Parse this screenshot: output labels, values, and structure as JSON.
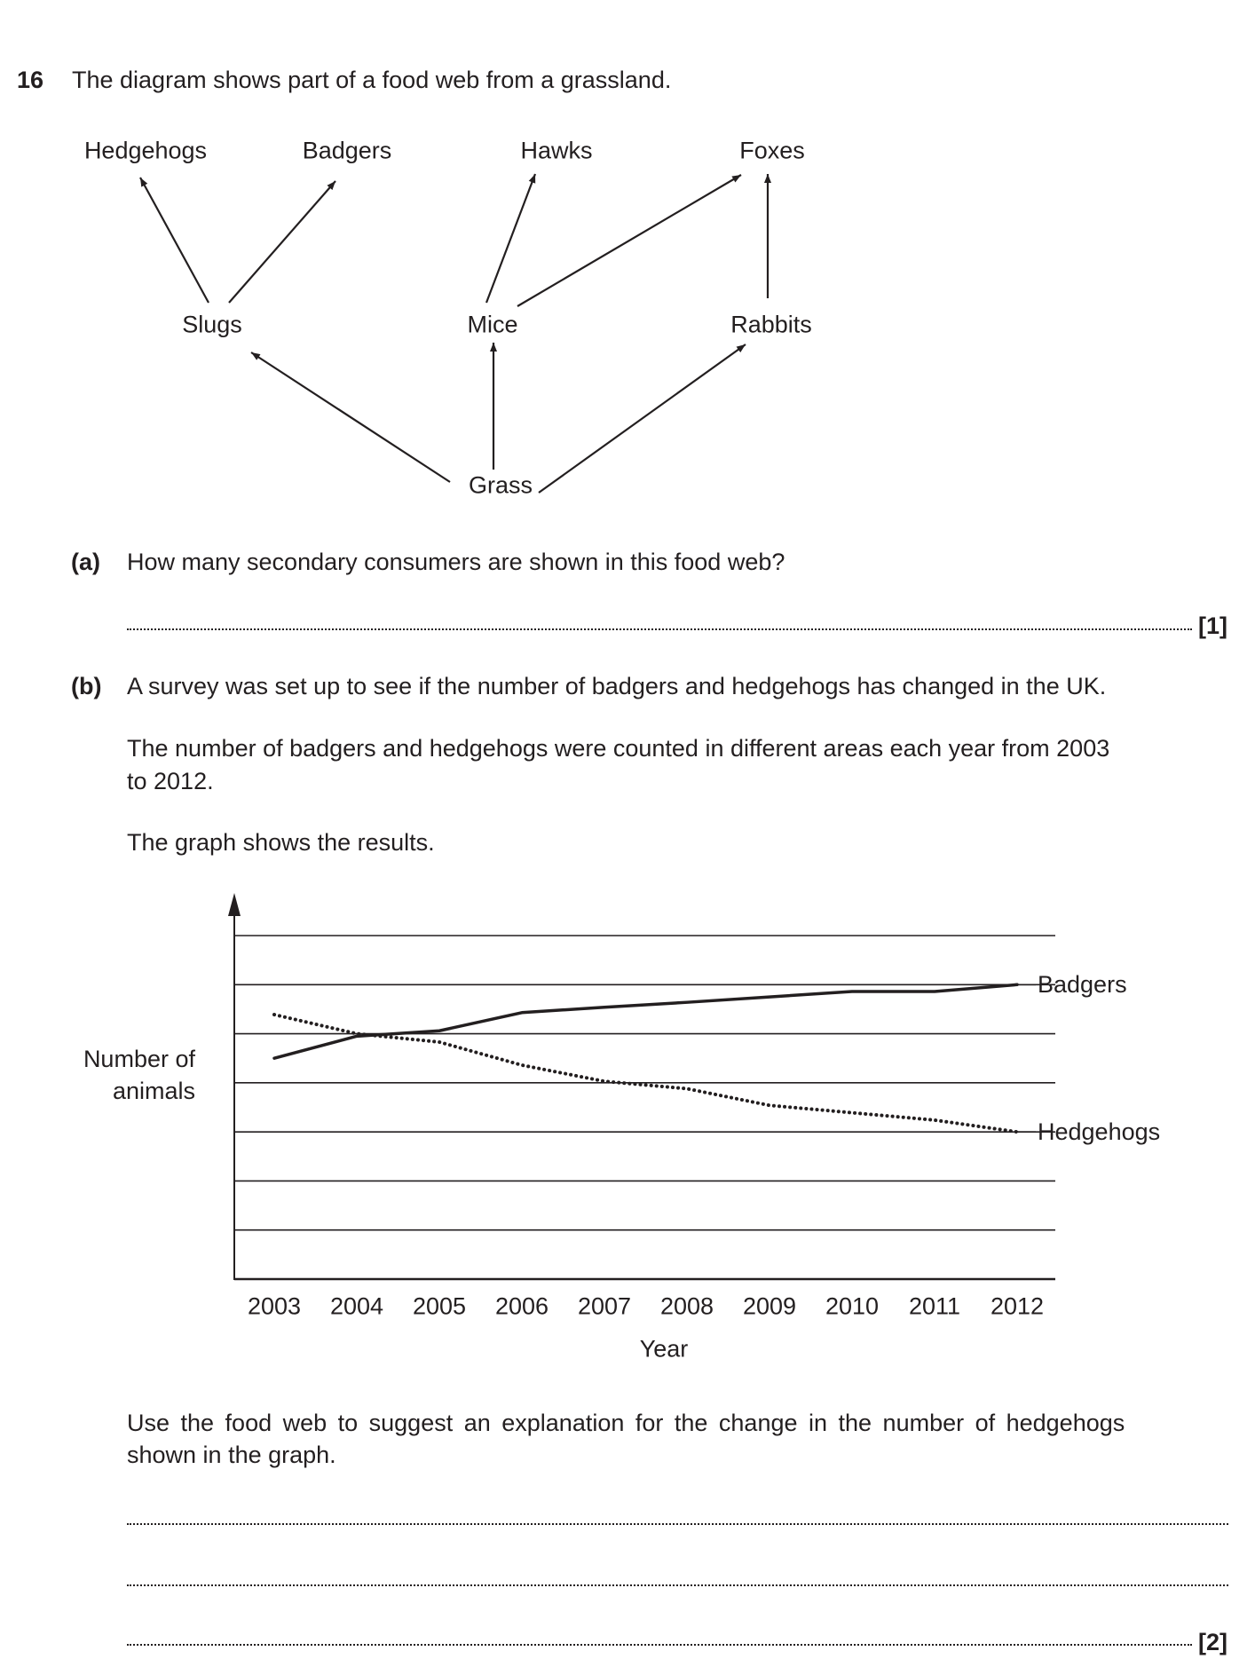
{
  "question": {
    "number": "16",
    "intro": "The diagram shows part of a food web from a grassland.",
    "food_web": {
      "nodes": {
        "hedgehogs": "Hedgehogs",
        "badgers": "Badgers",
        "hawks": "Hawks",
        "foxes": "Foxes",
        "slugs": "Slugs",
        "mice": "Mice",
        "rabbits": "Rabbits",
        "grass": "Grass"
      },
      "arrows": [
        {
          "from": "Slugs",
          "to": "Hedgehogs"
        },
        {
          "from": "Slugs",
          "to": "Badgers"
        },
        {
          "from": "Mice",
          "to": "Hawks"
        },
        {
          "from": "Mice",
          "to": "Foxes"
        },
        {
          "from": "Rabbits",
          "to": "Foxes"
        },
        {
          "from": "Grass",
          "to": "Slugs"
        },
        {
          "from": "Grass",
          "to": "Mice"
        },
        {
          "from": "Grass",
          "to": "Rabbits"
        }
      ]
    },
    "part_a": {
      "label": "(a)",
      "text": "How many secondary consumers are shown in this food web?",
      "marks": "[1]"
    },
    "part_b": {
      "label": "(b)",
      "text1": "A survey was set up to see if the number of badgers and hedgehogs has changed in the UK.",
      "text2_line1": "The number of badgers and hedgehogs were counted in different areas each year from 2003",
      "text2_line2": "to 2012.",
      "text3": "The graph shows the results.",
      "text4_line1": "Use the food web to suggest an explanation for the change in the number of hedgehogs",
      "text4_line2": "shown in the graph.",
      "marks": "[2]"
    }
  },
  "chart_data": {
    "type": "line",
    "title": "",
    "xlabel": "Year",
    "ylabel_line1": "Number of",
    "ylabel_line2": "animals",
    "categories": [
      "2003",
      "2004",
      "2005",
      "2006",
      "2007",
      "2008",
      "2009",
      "2010",
      "2011",
      "2012"
    ],
    "ylim": [
      0,
      7
    ],
    "y_tick_labels": "none",
    "grid": true,
    "series": [
      {
        "name": "Badgers",
        "style": "solid",
        "values": [
          4.5,
          4.95,
          5.06,
          5.43,
          5.54,
          5.64,
          5.75,
          5.86,
          5.86,
          6.0
        ]
      },
      {
        "name": "Hedgehogs",
        "style": "dotted",
        "values": [
          5.39,
          5.0,
          4.83,
          4.36,
          4.03,
          3.88,
          3.54,
          3.39,
          3.24,
          3.0
        ]
      }
    ],
    "legend": "labels at line ends (right)"
  }
}
